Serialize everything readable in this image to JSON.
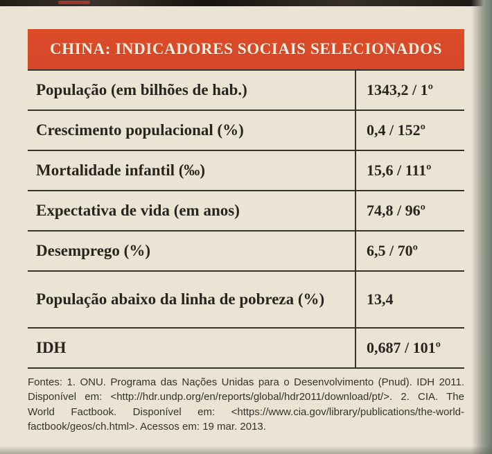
{
  "banner": {
    "title": "CHINA: INDICADORES SOCIAIS SELECIONADOS",
    "background_color": "#d8492a",
    "text_color": "#f6efe0"
  },
  "table": {
    "rows": [
      {
        "label": "População (em bilhões de hab.)",
        "value": "1343,2 / 1º"
      },
      {
        "label": "Crescimento populacional (%)",
        "value": "0,4 / 152º"
      },
      {
        "label": "Mortalidade infantil (‰)",
        "value": "15,6 / 111º"
      },
      {
        "label": "Expectativa de vida (em anos)",
        "value": "74,8 / 96º"
      },
      {
        "label": "Desemprego (%)",
        "value": "6,5 / 70º"
      },
      {
        "label": "População abaixo da linha de pobreza (%)",
        "value": "13,4"
      },
      {
        "label": "IDH",
        "value": "0,687 / 101º"
      }
    ]
  },
  "sources": {
    "text": "Fontes: 1. ONU. Programa das Nações Unidas para o Desenvolvimento (Pnud). IDH 2011. Disponível em: <http://hdr.undp.org/en/reports/global/hdr2011/download/pt/>. 2. CIA. The World Factbook. Disponível em: <https://www.cia.gov/library/publications/the-world-factbook/geos/ch.html>. Acessos em: 19 mar. 2013."
  }
}
